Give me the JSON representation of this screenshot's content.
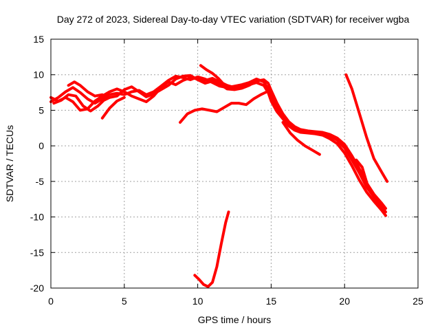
{
  "chart_data": {
    "type": "scatter",
    "title": "Day 272 of 2023, Sidereal Day-to-day VTEC variation (SDTVAR) for receiver wgba",
    "xlabel": "GPS time / hours",
    "ylabel": "SDTVAR / TECUs",
    "xlim": [
      0,
      25
    ],
    "ylim": [
      -20,
      15
    ],
    "xticks": [
      0,
      5,
      10,
      15,
      20,
      25
    ],
    "yticks": [
      -20,
      -15,
      -10,
      -5,
      0,
      5,
      10,
      15
    ],
    "grid": true,
    "legend": "none",
    "color": "#ff0000",
    "series": [
      {
        "name": "trace-1",
        "points": [
          [
            0.0,
            6.8
          ],
          [
            0.5,
            6.3
          ],
          [
            1.0,
            6.8
          ],
          [
            1.5,
            6.2
          ],
          [
            2.0,
            5.0
          ],
          [
            2.5,
            5.2
          ],
          [
            3.0,
            6.3
          ],
          [
            3.5,
            7.0
          ],
          [
            4.0,
            7.6
          ],
          [
            4.5,
            8.0
          ],
          [
            5.0,
            7.6
          ],
          [
            5.5,
            7.0
          ],
          [
            6.0,
            6.6
          ],
          [
            6.5,
            6.2
          ],
          [
            7.0,
            7.0
          ],
          [
            7.5,
            8.2
          ],
          [
            8.0,
            9.0
          ],
          [
            8.5,
            8.6
          ],
          [
            9.0,
            9.2
          ],
          [
            9.5,
            9.6
          ],
          [
            10.0,
            9.4
          ],
          [
            10.5,
            9.2
          ],
          [
            11.0,
            9.5
          ],
          [
            11.5,
            9.0
          ],
          [
            12.0,
            8.5
          ],
          [
            12.5,
            8.2
          ],
          [
            13.0,
            8.3
          ],
          [
            13.5,
            8.6
          ],
          [
            14.0,
            8.9
          ],
          [
            14.5,
            8.5
          ],
          [
            14.8,
            7.5
          ],
          [
            15.0,
            6.3
          ],
          [
            15.4,
            4.8
          ],
          [
            15.8,
            3.8
          ],
          [
            16.2,
            2.8
          ],
          [
            16.6,
            2.2
          ],
          [
            17.0,
            1.9
          ],
          [
            17.5,
            1.8
          ],
          [
            18.0,
            1.7
          ],
          [
            18.5,
            1.5
          ],
          [
            19.0,
            1.0
          ],
          [
            19.5,
            0.3
          ],
          [
            20.0,
            -1.0
          ],
          [
            20.5,
            -2.8
          ],
          [
            21.0,
            -4.8
          ],
          [
            21.5,
            -6.5
          ],
          [
            22.0,
            -7.8
          ],
          [
            22.5,
            -9.0
          ],
          [
            22.8,
            -9.8
          ]
        ]
      },
      {
        "name": "trace-2",
        "points": [
          [
            0.0,
            6.2
          ],
          [
            0.5,
            6.8
          ],
          [
            1.0,
            7.6
          ],
          [
            1.5,
            8.2
          ],
          [
            2.0,
            7.5
          ],
          [
            2.5,
            6.6
          ],
          [
            3.0,
            6.0
          ],
          [
            3.5,
            6.6
          ],
          [
            4.0,
            7.2
          ],
          [
            4.5,
            7.4
          ],
          [
            5.0,
            7.2
          ],
          [
            5.5,
            7.6
          ],
          [
            6.0,
            7.8
          ],
          [
            6.5,
            7.2
          ],
          [
            7.0,
            7.6
          ],
          [
            7.5,
            8.4
          ],
          [
            8.0,
            9.2
          ],
          [
            8.5,
            9.8
          ],
          [
            9.0,
            9.6
          ],
          [
            9.5,
            9.3
          ],
          [
            10.0,
            9.7
          ],
          [
            10.5,
            9.4
          ],
          [
            11.0,
            8.9
          ],
          [
            11.5,
            8.4
          ],
          [
            12.0,
            8.2
          ],
          [
            12.5,
            8.4
          ],
          [
            13.0,
            8.6
          ],
          [
            13.5,
            8.9
          ],
          [
            14.0,
            9.4
          ],
          [
            14.5,
            9.0
          ],
          [
            14.8,
            8.0
          ],
          [
            15.0,
            7.0
          ],
          [
            15.4,
            5.5
          ],
          [
            15.8,
            4.0
          ],
          [
            16.2,
            3.0
          ],
          [
            16.6,
            2.4
          ],
          [
            17.0,
            2.1
          ],
          [
            17.5,
            2.0
          ],
          [
            18.0,
            1.9
          ],
          [
            18.5,
            1.8
          ],
          [
            19.0,
            1.4
          ],
          [
            19.5,
            0.8
          ],
          [
            20.0,
            -0.3
          ],
          [
            20.5,
            -2.0
          ],
          [
            21.0,
            -3.8
          ],
          [
            21.5,
            -5.8
          ],
          [
            22.0,
            -7.2
          ],
          [
            22.5,
            -8.5
          ],
          [
            22.8,
            -9.3
          ]
        ]
      },
      {
        "name": "trace-3",
        "points": [
          [
            0.2,
            6.0
          ],
          [
            0.7,
            6.4
          ],
          [
            1.2,
            7.2
          ],
          [
            1.7,
            7.0
          ],
          [
            2.2,
            5.6
          ],
          [
            2.7,
            4.9
          ],
          [
            3.2,
            5.6
          ],
          [
            3.6,
            6.4
          ],
          [
            4.0,
            6.8
          ],
          [
            4.5,
            7.0
          ],
          [
            5.0,
            7.9
          ],
          [
            5.5,
            8.3
          ],
          [
            6.0,
            7.6
          ],
          [
            6.5,
            6.9
          ],
          [
            7.0,
            7.3
          ],
          [
            7.5,
            7.9
          ],
          [
            8.0,
            8.5
          ],
          [
            8.5,
            9.4
          ],
          [
            9.0,
            9.8
          ],
          [
            9.5,
            9.9
          ],
          [
            10.0,
            9.3
          ],
          [
            10.5,
            8.8
          ],
          [
            11.0,
            9.1
          ],
          [
            11.5,
            8.7
          ],
          [
            12.0,
            8.0
          ],
          [
            12.5,
            7.9
          ],
          [
            13.0,
            8.1
          ],
          [
            13.5,
            8.5
          ],
          [
            14.0,
            9.1
          ],
          [
            14.5,
            9.3
          ],
          [
            14.8,
            8.8
          ],
          [
            15.0,
            7.8
          ],
          [
            15.4,
            6.0
          ],
          [
            15.8,
            4.5
          ],
          [
            16.2,
            3.4
          ],
          [
            16.6,
            2.7
          ],
          [
            17.0,
            2.3
          ],
          [
            17.5,
            2.1
          ],
          [
            18.0,
            2.0
          ],
          [
            18.5,
            1.9
          ],
          [
            19.0,
            1.6
          ],
          [
            19.5,
            1.1
          ],
          [
            20.0,
            0.2
          ],
          [
            20.5,
            -1.4
          ],
          [
            21.0,
            -3.2
          ],
          [
            21.5,
            -5.2
          ],
          [
            22.0,
            -6.8
          ],
          [
            22.5,
            -8.0
          ],
          [
            22.8,
            -8.8
          ]
        ]
      },
      {
        "name": "trace-4",
        "points": [
          [
            1.2,
            8.5
          ],
          [
            1.6,
            9.0
          ],
          [
            2.0,
            8.5
          ],
          [
            2.5,
            7.6
          ],
          [
            3.0,
            7.0
          ],
          [
            3.5,
            7.2
          ],
          [
            3.8,
            6.8
          ]
        ]
      },
      {
        "name": "trace-5",
        "points": [
          [
            3.5,
            3.9
          ],
          [
            4.0,
            5.3
          ],
          [
            4.5,
            6.3
          ],
          [
            5.0,
            6.8
          ]
        ]
      },
      {
        "name": "trace-6",
        "points": [
          [
            10.2,
            11.3
          ],
          [
            10.6,
            10.7
          ],
          [
            11.0,
            10.2
          ],
          [
            11.4,
            9.5
          ],
          [
            11.8,
            8.6
          ],
          [
            12.2,
            8.0
          ]
        ]
      },
      {
        "name": "trace-7",
        "points": [
          [
            8.8,
            3.3
          ],
          [
            9.3,
            4.5
          ],
          [
            9.8,
            5.0
          ],
          [
            10.3,
            5.2
          ],
          [
            10.8,
            5.0
          ],
          [
            11.3,
            4.8
          ],
          [
            11.8,
            5.4
          ],
          [
            12.3,
            6.0
          ],
          [
            12.8,
            6.0
          ],
          [
            13.3,
            5.8
          ],
          [
            13.8,
            6.6
          ],
          [
            14.3,
            7.2
          ],
          [
            14.8,
            7.7
          ]
        ]
      },
      {
        "name": "trace-8",
        "points": [
          [
            15.8,
            3.3
          ],
          [
            16.3,
            1.8
          ],
          [
            16.8,
            0.8
          ],
          [
            17.3,
            0.0
          ],
          [
            17.8,
            -0.6
          ],
          [
            18.3,
            -1.2
          ]
        ]
      },
      {
        "name": "trace-9",
        "points": [
          [
            20.1,
            10.0
          ],
          [
            20.5,
            8.0
          ],
          [
            21.0,
            4.6
          ],
          [
            21.5,
            1.2
          ],
          [
            22.0,
            -1.8
          ],
          [
            22.5,
            -3.6
          ],
          [
            22.9,
            -5.0
          ]
        ]
      },
      {
        "name": "trace-10",
        "points": [
          [
            20.8,
            -2.0
          ],
          [
            21.2,
            -3.0
          ],
          [
            21.6,
            -5.8
          ],
          [
            22.0,
            -7.2
          ],
          [
            22.4,
            -8.0
          ]
        ]
      },
      {
        "name": "trace-11",
        "points": [
          [
            9.8,
            -18.2
          ],
          [
            10.1,
            -18.8
          ],
          [
            10.4,
            -19.5
          ],
          [
            10.7,
            -19.8
          ],
          [
            11.0,
            -19.2
          ],
          [
            11.3,
            -17.0
          ],
          [
            11.6,
            -13.8
          ],
          [
            11.9,
            -10.8
          ],
          [
            12.1,
            -9.3
          ]
        ]
      }
    ]
  }
}
